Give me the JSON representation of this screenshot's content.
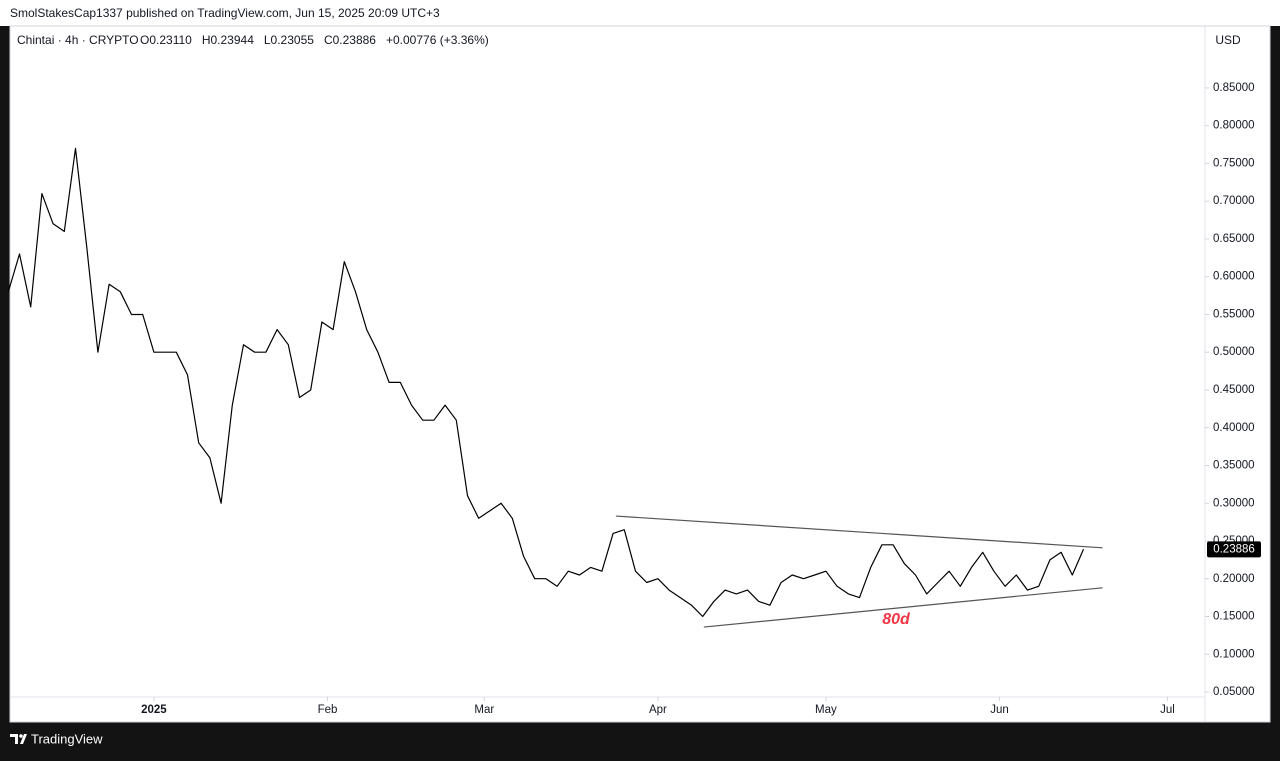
{
  "chart_data": {
    "type": "line",
    "publisher": "SmolStakesCap1337 published on TradingView.com, Jun 15, 2025 20:09 UTC+3",
    "symbol": "Chintai · 4h · CRYPTO",
    "ohlc": [
      "O0.23110",
      "H0.23944",
      "L0.23055",
      "C0.23886",
      "+0.00776 (+3.36%)"
    ],
    "currency": "USD",
    "footer": "TradingView",
    "annotation": "80d",
    "annotation_color": "#f23645",
    "color": "#000000",
    "last_price": 0.23886,
    "x": [
      -26,
      -24,
      -22,
      -20,
      -18,
      -16,
      -14,
      -12,
      -10,
      -8,
      -6,
      -4,
      -2,
      0,
      2,
      4,
      6,
      8,
      10,
      12,
      14,
      16,
      18,
      20,
      22,
      24,
      26,
      28,
      30,
      32,
      34,
      36,
      38,
      40,
      42,
      44,
      46,
      48,
      50,
      52,
      54,
      56,
      58,
      60,
      62,
      64,
      66,
      68,
      70,
      72,
      74,
      76,
      78,
      80,
      82,
      84,
      86,
      88,
      90,
      92,
      94,
      96,
      98,
      100,
      102,
      104,
      106,
      108,
      110,
      112,
      114,
      116,
      118,
      120,
      122,
      124,
      126,
      128,
      130,
      132,
      134,
      136,
      138,
      140,
      142,
      144,
      146,
      148,
      150,
      152,
      154,
      156,
      158,
      160,
      162,
      164,
      166
    ],
    "values": [
      0.58,
      0.63,
      0.56,
      0.71,
      0.67,
      0.66,
      0.77,
      0.64,
      0.5,
      0.59,
      0.58,
      0.55,
      0.55,
      0.5,
      0.5,
      0.5,
      0.47,
      0.38,
      0.36,
      0.3,
      0.43,
      0.51,
      0.5,
      0.5,
      0.53,
      0.51,
      0.44,
      0.45,
      0.54,
      0.53,
      0.62,
      0.58,
      0.53,
      0.5,
      0.46,
      0.46,
      0.43,
      0.41,
      0.41,
      0.43,
      0.41,
      0.31,
      0.28,
      0.29,
      0.3,
      0.28,
      0.23,
      0.2,
      0.2,
      0.19,
      0.21,
      0.205,
      0.215,
      0.21,
      0.26,
      0.265,
      0.21,
      0.195,
      0.2,
      0.185,
      0.175,
      0.165,
      0.15,
      0.17,
      0.185,
      0.18,
      0.185,
      0.17,
      0.165,
      0.195,
      0.205,
      0.2,
      0.205,
      0.21,
      0.19,
      0.18,
      0.175,
      0.215,
      0.245,
      0.245,
      0.22,
      0.205,
      0.18,
      0.195,
      0.21,
      0.19,
      0.215,
      0.235,
      0.21,
      0.19,
      0.205,
      0.185,
      0.19,
      0.225,
      0.235,
      0.205,
      0.239
    ],
    "trendlines": [
      {
        "x": [
          82.5,
          169.4
        ],
        "y": [
          0.283,
          0.241
        ],
        "color": "#555555"
      },
      {
        "x": [
          98.2,
          169.4
        ],
        "y": [
          0.136,
          0.188
        ],
        "color": "#555555"
      }
    ],
    "xlim": [
      -25.7,
      187.7
    ],
    "ylim": [
      0.0434,
      0.932
    ],
    "xticks": [
      {
        "value": 0,
        "label": "2025"
      },
      {
        "value": 31,
        "label": "Feb"
      },
      {
        "value": 59,
        "label": "Mar"
      },
      {
        "value": 90,
        "label": "Apr"
      },
      {
        "value": 120,
        "label": "May"
      },
      {
        "value": 151,
        "label": "Jun"
      },
      {
        "value": 181,
        "label": "Jul"
      }
    ],
    "yticks": [
      {
        "value": 0.05,
        "label": "0.05000"
      },
      {
        "value": 0.1,
        "label": "0.10000"
      },
      {
        "value": 0.15,
        "label": "0.15000"
      },
      {
        "value": 0.2,
        "label": "0.20000"
      },
      {
        "value": 0.25,
        "label": "0.25000"
      },
      {
        "value": 0.3,
        "label": "0.30000"
      },
      {
        "value": 0.35,
        "label": "0.35000"
      },
      {
        "value": 0.4,
        "label": "0.40000"
      },
      {
        "value": 0.45,
        "label": "0.45000"
      },
      {
        "value": 0.5,
        "label": "0.50000"
      },
      {
        "value": 0.55,
        "label": "0.55000"
      },
      {
        "value": 0.6,
        "label": "0.60000"
      },
      {
        "value": 0.65,
        "label": "0.65000"
      },
      {
        "value": 0.7,
        "label": "0.70000"
      },
      {
        "value": 0.75,
        "label": "0.75000"
      },
      {
        "value": 0.8,
        "label": "0.80000"
      },
      {
        "value": 0.85,
        "label": "0.85000"
      }
    ]
  }
}
